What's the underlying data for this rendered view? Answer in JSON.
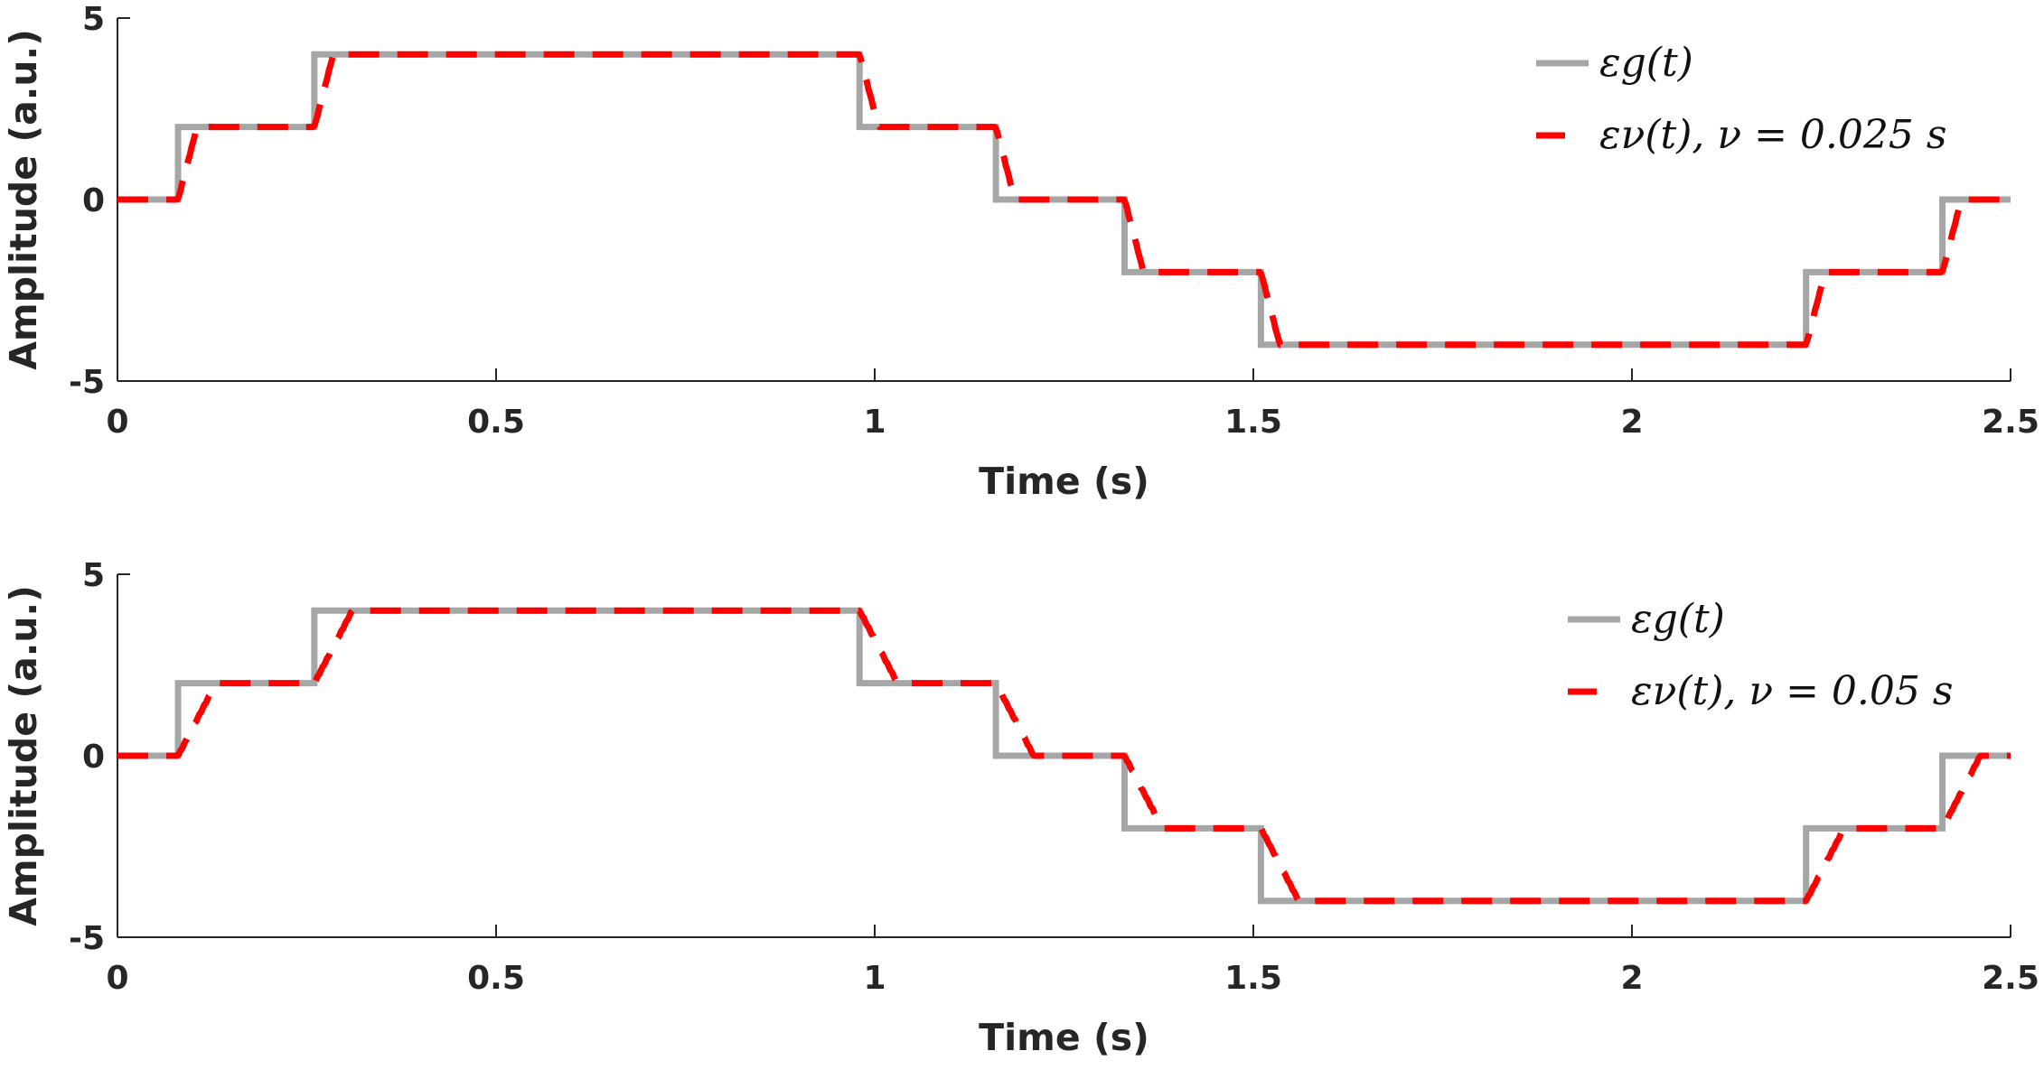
{
  "chart_data": [
    {
      "type": "line",
      "xlabel": "Time (s)",
      "ylabel": "Amplitude (a.u.)",
      "xlim": [
        0,
        2.5
      ],
      "ylim": [
        -5,
        5
      ],
      "x_ticks": [
        0,
        0.5,
        1,
        1.5,
        2,
        2.5
      ],
      "x_tick_labels": [
        "0",
        "0.5",
        "1",
        "1.5",
        "2",
        "2.5"
      ],
      "y_ticks": [
        -5,
        0,
        5
      ],
      "y_tick_labels": [
        "-5",
        "0",
        "5"
      ],
      "grid": false,
      "legend_position": "top-right",
      "series": [
        {
          "name": "εg(t)",
          "style": "solid",
          "color": "#a6a6a6",
          "breakpoints": [
            0,
            0.08,
            0.26,
            0.98,
            1.16,
            1.33,
            1.51,
            2.23,
            2.41,
            2.5
          ],
          "levels": [
            0,
            2,
            4,
            2,
            0,
            -2,
            -4,
            -2,
            0
          ]
        },
        {
          "name": "εν(t), ν = 0.025 s",
          "style": "dashed",
          "color": "#ff0000",
          "smoothing_window": 0.025
        }
      ]
    },
    {
      "type": "line",
      "xlabel": "Time (s)",
      "ylabel": "Amplitude (a.u.)",
      "xlim": [
        0,
        2.5
      ],
      "ylim": [
        -5,
        5
      ],
      "x_ticks": [
        0,
        0.5,
        1,
        1.5,
        2,
        2.5
      ],
      "x_tick_labels": [
        "0",
        "0.5",
        "1",
        "1.5",
        "2",
        "2.5"
      ],
      "y_ticks": [
        -5,
        0,
        5
      ],
      "y_tick_labels": [
        "-5",
        "0",
        "5"
      ],
      "grid": false,
      "legend_position": "top-right",
      "series": [
        {
          "name": "εg(t)",
          "style": "solid",
          "color": "#a6a6a6",
          "breakpoints": [
            0,
            0.08,
            0.26,
            0.98,
            1.16,
            1.33,
            1.51,
            2.23,
            2.41,
            2.5
          ],
          "levels": [
            0,
            2,
            4,
            2,
            0,
            -2,
            -4,
            -2,
            0
          ]
        },
        {
          "name": "εν(t), ν = 0.05 s",
          "style": "dashed",
          "color": "#ff0000",
          "smoothing_window": 0.05
        }
      ]
    }
  ]
}
